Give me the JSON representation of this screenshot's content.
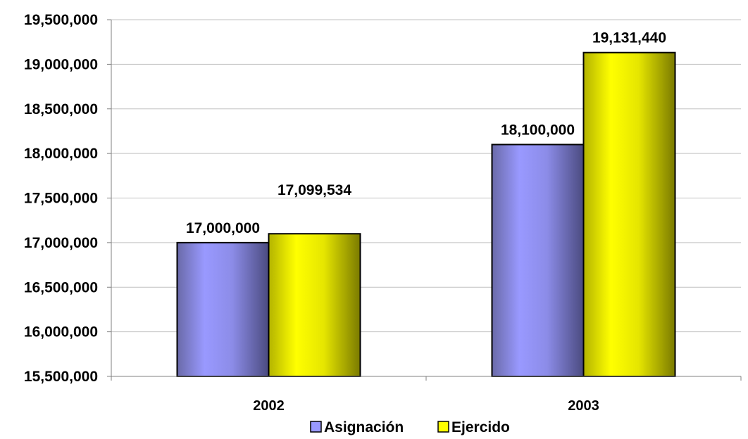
{
  "chart_data": {
    "type": "bar",
    "categories": [
      "2002",
      "2003"
    ],
    "series": [
      {
        "name": "Asignación",
        "values": [
          17000000,
          18100000
        ],
        "value_labels": [
          "17,000,000",
          "18,100,000"
        ],
        "color": "#9999ff"
      },
      {
        "name": "Ejercido",
        "values": [
          17099534,
          19131440
        ],
        "value_labels": [
          "17,099,534",
          "19,131,440"
        ],
        "color": "#ffff00"
      }
    ],
    "ylim": [
      15500000,
      19500000
    ],
    "yticks": [
      15500000,
      16000000,
      16500000,
      17000000,
      17500000,
      18000000,
      18500000,
      19000000,
      19500000
    ],
    "ytick_labels": [
      "15,500,000",
      "16,000,000",
      "16,500,000",
      "17,000,000",
      "17,500,000",
      "18,000,000",
      "18,500,000",
      "19,000,000",
      "19,500,000"
    ],
    "grid": true,
    "legend": "bottom",
    "title": "",
    "xlabel": "",
    "ylabel": ""
  }
}
